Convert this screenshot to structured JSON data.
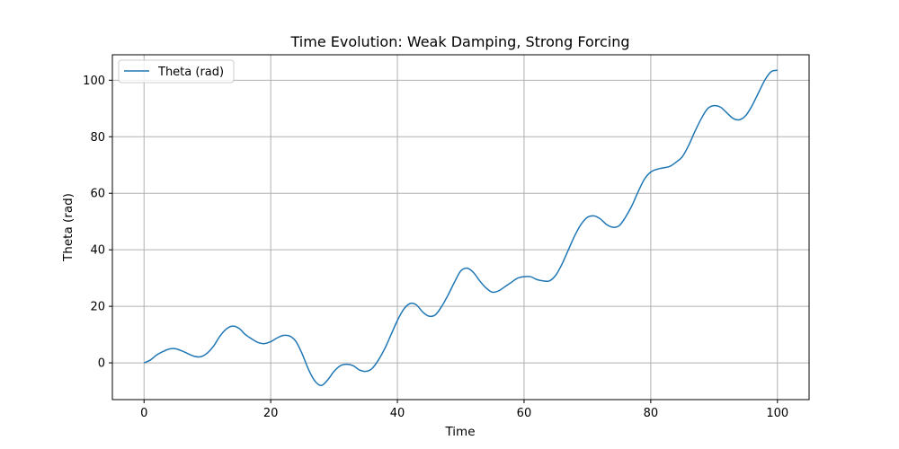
{
  "chart_data": {
    "type": "line",
    "title": "Time Evolution: Weak Damping, Strong Forcing",
    "xlabel": "Time",
    "ylabel": "Theta (rad)",
    "xlim": [
      -5,
      105
    ],
    "ylim": [
      -13,
      109
    ],
    "xticks": [
      0,
      20,
      40,
      60,
      80,
      100
    ],
    "yticks": [
      0,
      20,
      40,
      60,
      80,
      100
    ],
    "grid": true,
    "legend": {
      "position": "upper left"
    },
    "colors": {
      "series": "#1f77b4",
      "grid": "#b0b0b0",
      "axes": "#000000"
    },
    "series": [
      {
        "name": "Theta (rad)",
        "x": [
          0,
          1,
          2,
          3,
          4,
          5,
          6,
          7,
          8,
          9,
          10,
          11,
          12,
          13,
          14,
          15,
          16,
          17,
          18,
          19,
          20,
          21,
          22,
          23,
          24,
          25,
          26,
          27,
          28,
          29,
          30,
          31,
          32,
          33,
          34,
          35,
          36,
          37,
          38,
          39,
          40,
          41,
          42,
          43,
          44,
          45,
          46,
          47,
          48,
          49,
          50,
          51,
          52,
          53,
          54,
          55,
          56,
          57,
          58,
          59,
          60,
          61,
          62,
          63,
          64,
          65,
          66,
          67,
          68,
          69,
          70,
          71,
          72,
          73,
          74,
          75,
          76,
          77,
          78,
          79,
          80,
          81,
          82,
          83,
          84,
          85,
          86,
          87,
          88,
          89,
          90,
          91,
          92,
          93,
          94,
          95,
          96,
          97,
          98,
          99,
          100
        ],
        "y": [
          0,
          1,
          2.8,
          4,
          4.9,
          5,
          4.2,
          3.2,
          2.3,
          2.2,
          3.5,
          6,
          9.5,
          12,
          13,
          12.2,
          10,
          8.5,
          7.2,
          6.8,
          7.5,
          8.8,
          9.7,
          9.5,
          7.5,
          3,
          -2.5,
          -6.5,
          -8,
          -6,
          -3,
          -1,
          -0.5,
          -1,
          -2.5,
          -3,
          -2,
          1,
          5,
          10,
          15,
          19,
          21,
          20.5,
          18,
          16.5,
          17,
          20,
          24,
          28.5,
          32.5,
          33.5,
          32,
          29,
          26.5,
          25,
          25.5,
          27,
          28.5,
          30,
          30.5,
          30.5,
          29.5,
          29,
          29,
          31,
          35,
          40,
          45,
          49,
          51.5,
          52,
          51,
          49,
          48,
          48.5,
          51.5,
          55.5,
          60.5,
          65,
          67.5,
          68.5,
          69,
          69.5,
          71,
          73,
          77,
          82,
          86.5,
          90,
          91,
          90.5,
          88.5,
          86.5,
          86,
          87.5,
          91,
          95.5,
          100,
          103,
          103.5
        ]
      }
    ]
  }
}
